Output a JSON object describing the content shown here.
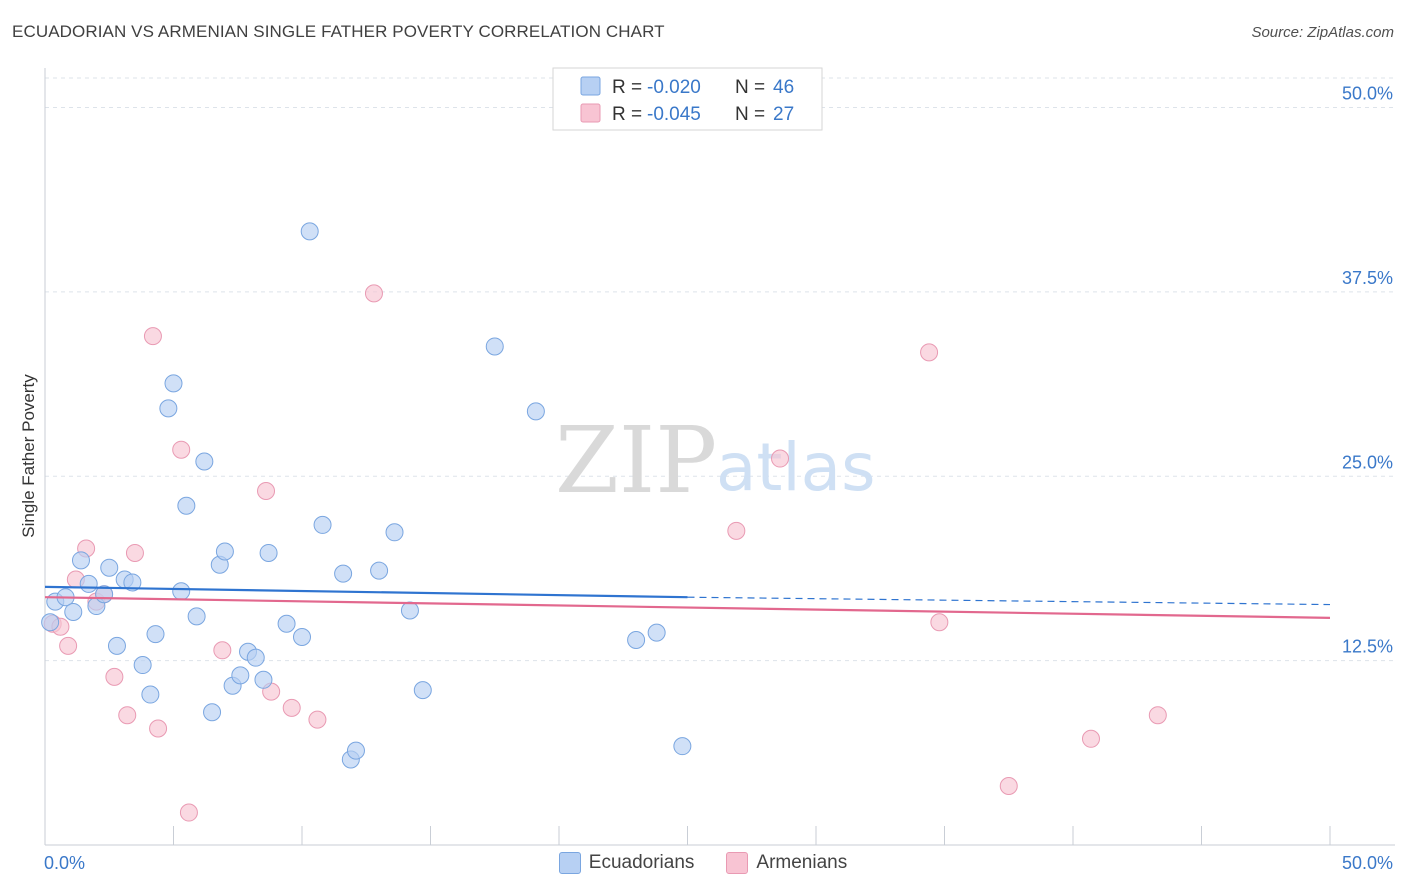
{
  "header": {
    "title": "ECUADORIAN VS ARMENIAN SINGLE FATHER POVERTY CORRELATION CHART",
    "source": "Source: ZipAtlas.com"
  },
  "watermark": {
    "zip": "ZIP",
    "atlas": "atlas"
  },
  "legend_box": {
    "rows": [
      {
        "r_label": "R = ",
        "r_value": "-0.020",
        "n_label": "N = ",
        "n_value": "46"
      },
      {
        "r_label": "R = ",
        "r_value": "-0.045",
        "n_label": "N = ",
        "n_value": "27"
      }
    ]
  },
  "bottom_legend": {
    "ecuadorians": "Ecuadorians",
    "armenians": "Armenians"
  },
  "chart_data": {
    "type": "scatter",
    "title": "ECUADORIAN VS ARMENIAN SINGLE FATHER POVERTY CORRELATION CHART",
    "xlabel": "",
    "ylabel": "Single Father Poverty",
    "xlim": [
      0,
      50
    ],
    "ylim": [
      0,
      52
    ],
    "x_tick_labels": [
      "0.0%",
      "50.0%"
    ],
    "y_tick_values": [
      12.5,
      25.0,
      37.5,
      50.0
    ],
    "y_tick_labels": [
      "12.5%",
      "25.0%",
      "37.5%",
      "50.0%"
    ],
    "colors": {
      "ecuadorians_fill": "#b7d0f3",
      "ecuadorians_stroke": "#7aa6e0",
      "ecuadorians_line": "#2f74d0",
      "armenians_fill": "#f8c4d3",
      "armenians_stroke": "#e99ab3",
      "armenians_line": "#e2688e",
      "value_blue": "#3a78c9",
      "grid": "#dde3ea"
    },
    "series": [
      {
        "name": "Ecuadorians",
        "r": -0.02,
        "n": 46,
        "trend": {
          "x0": 0,
          "y0": 17.5,
          "x1": 25,
          "y1": 16.8,
          "dash_x1": 50,
          "dash_y1": 16.3
        },
        "points": [
          [
            0.4,
            16.5
          ],
          [
            0.8,
            16.8
          ],
          [
            1.1,
            15.8
          ],
          [
            1.4,
            19.3
          ],
          [
            1.7,
            17.7
          ],
          [
            2.0,
            16.2
          ],
          [
            2.3,
            17.0
          ],
          [
            2.5,
            18.8
          ],
          [
            2.8,
            13.5
          ],
          [
            3.1,
            18.0
          ],
          [
            3.4,
            17.8
          ],
          [
            3.8,
            12.2
          ],
          [
            4.1,
            10.2
          ],
          [
            4.3,
            14.3
          ],
          [
            4.8,
            29.6
          ],
          [
            5.0,
            31.3
          ],
          [
            5.3,
            17.2
          ],
          [
            5.5,
            23.0
          ],
          [
            5.9,
            15.5
          ],
          [
            6.2,
            26.0
          ],
          [
            6.5,
            9.0
          ],
          [
            6.8,
            19.0
          ],
          [
            7.0,
            19.9
          ],
          [
            7.3,
            10.8
          ],
          [
            7.6,
            11.5
          ],
          [
            7.9,
            13.1
          ],
          [
            8.2,
            12.7
          ],
          [
            8.5,
            11.2
          ],
          [
            8.7,
            19.8
          ],
          [
            9.4,
            15.0
          ],
          [
            10.0,
            14.1
          ],
          [
            10.3,
            41.6
          ],
          [
            10.8,
            21.7
          ],
          [
            11.6,
            18.4
          ],
          [
            11.9,
            5.8
          ],
          [
            12.1,
            6.4
          ],
          [
            13.0,
            18.6
          ],
          [
            13.6,
            21.2
          ],
          [
            14.2,
            15.9
          ],
          [
            14.7,
            10.5
          ],
          [
            17.5,
            33.8
          ],
          [
            19.1,
            29.4
          ],
          [
            23.0,
            13.9
          ],
          [
            23.8,
            14.4
          ],
          [
            24.8,
            6.7
          ],
          [
            0.2,
            15.1
          ]
        ]
      },
      {
        "name": "Armenians",
        "r": -0.045,
        "n": 27,
        "trend": {
          "x0": 0,
          "y0": 16.8,
          "x1": 50,
          "y1": 15.4
        },
        "points": [
          [
            0.3,
            15.0
          ],
          [
            0.6,
            14.8
          ],
          [
            0.9,
            13.5
          ],
          [
            1.2,
            18.0
          ],
          [
            1.6,
            20.1
          ],
          [
            2.0,
            16.5
          ],
          [
            2.3,
            17.0
          ],
          [
            2.7,
            11.4
          ],
          [
            3.2,
            8.8
          ],
          [
            3.5,
            19.8
          ],
          [
            4.2,
            34.5
          ],
          [
            4.4,
            7.9
          ],
          [
            5.3,
            26.8
          ],
          [
            5.6,
            2.2
          ],
          [
            6.9,
            13.2
          ],
          [
            8.6,
            24.0
          ],
          [
            8.8,
            10.4
          ],
          [
            9.6,
            9.3
          ],
          [
            10.6,
            8.5
          ],
          [
            12.8,
            37.4
          ],
          [
            26.9,
            21.3
          ],
          [
            28.6,
            26.2
          ],
          [
            34.4,
            33.4
          ],
          [
            34.8,
            15.1
          ],
          [
            37.5,
            4.0
          ],
          [
            40.7,
            7.2
          ],
          [
            43.3,
            8.8
          ]
        ]
      }
    ]
  }
}
